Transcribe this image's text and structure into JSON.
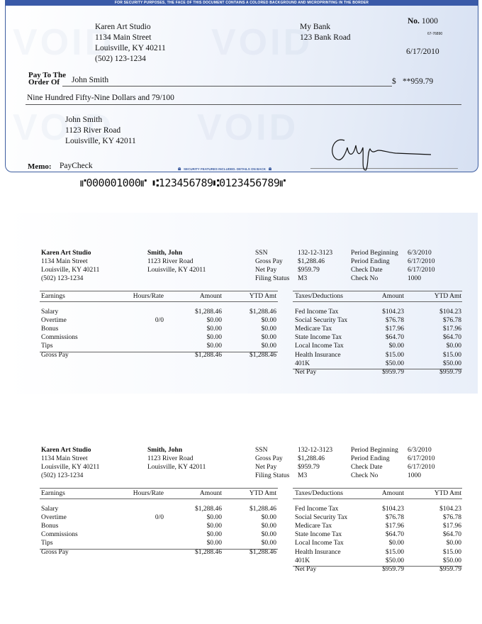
{
  "check": {
    "banner": "FOR SECURITY PURPOSES, THE FACE OF THIS DOCUMENT CONTAINS A COLORED BACKGROUND AND MICROPRINTING IN THE BORDER",
    "watermark": "VOID",
    "payer": {
      "name": "Karen Art Studio",
      "street": "1134 Main Street",
      "city": "Louisville, KY 40211",
      "phone": "(502) 123-1234"
    },
    "bank": {
      "name": "My Bank",
      "street": "123 Bank Road"
    },
    "number_label": "No.",
    "number": "1000",
    "routing_fraction": "67-76890",
    "date": "6/17/2010",
    "pay_to_label_1": "Pay To The",
    "pay_to_label_2": "Order Of",
    "payee": "John Smith",
    "dollar_sign": "$",
    "amount": "**959.79",
    "amount_words": "Nine Hundred Fifty-Nine Dollars and 79/100",
    "payee_address": {
      "name": "John Smith",
      "street": "1123 River Road",
      "city": "Louisville, KY 42011"
    },
    "memo_label": "Memo:",
    "memo": "PayCheck",
    "security_note": "SECURITY FEATURES INCLUDED. DETAILS ON BACK",
    "micr": "⑈000001000⑈ ⑆123456789⑆0123456789⑈"
  },
  "stub": {
    "company": {
      "name": "Karen Art Studio",
      "street": "1134 Main Street",
      "city": "Louisville, KY 40211",
      "phone": "(502) 123-1234"
    },
    "employee": {
      "name": "Smith, John",
      "street": "1123 River Road",
      "city": "Louisville, KY 42011"
    },
    "info": [
      {
        "label": "SSN",
        "value": "132-12-3123"
      },
      {
        "label": "Gross Pay",
        "value": "$1,288.46"
      },
      {
        "label": "Net Pay",
        "value": "$959.79"
      },
      {
        "label": "Filing Status",
        "value": "M3"
      }
    ],
    "period": [
      {
        "label": "Period Beginning",
        "value": "6/3/2010"
      },
      {
        "label": "Period Ending",
        "value": "6/17/2010"
      },
      {
        "label": "Check Date",
        "value": "6/17/2010"
      },
      {
        "label": "Check No",
        "value": "1000"
      }
    ],
    "earnings_headers": [
      "Earnings",
      "Hours/Rate",
      "Amount",
      "YTD Amt"
    ],
    "earnings": [
      {
        "name": "Salary",
        "rate": "",
        "amount": "$1,288.46",
        "ytd": "$1,288.46"
      },
      {
        "name": "Overtime",
        "rate": "0/0",
        "amount": "$0.00",
        "ytd": "$0.00"
      },
      {
        "name": "Bonus",
        "rate": "",
        "amount": "$0.00",
        "ytd": "$0.00"
      },
      {
        "name": "Commissions",
        "rate": "",
        "amount": "$0.00",
        "ytd": "$0.00"
      },
      {
        "name": "Tips",
        "rate": "",
        "amount": "$0.00",
        "ytd": "$0.00"
      }
    ],
    "gross": {
      "name": "Gross Pay",
      "amount": "$1,288.46",
      "ytd": "$1,288.46"
    },
    "deduction_headers": [
      "Taxes/Deductions",
      "Amount",
      "YTD Amt"
    ],
    "deductions": [
      {
        "name": "Fed Income Tax",
        "amount": "$104.23",
        "ytd": "$104.23"
      },
      {
        "name": "Social Security Tax",
        "amount": "$76.78",
        "ytd": "$76.78"
      },
      {
        "name": "Medicare Tax",
        "amount": "$17.96",
        "ytd": "$17.96"
      },
      {
        "name": "State Income Tax",
        "amount": "$64.70",
        "ytd": "$64.70"
      },
      {
        "name": "Local Income Tax",
        "amount": "$0.00",
        "ytd": "$0.00"
      },
      {
        "name": "Health Insurance",
        "amount": "$15.00",
        "ytd": "$15.00"
      },
      {
        "name": "401K",
        "amount": "$50.00",
        "ytd": "$50.00"
      }
    ],
    "net": {
      "name": "Net Pay",
      "amount": "$959.79",
      "ytd": "$959.79"
    }
  }
}
